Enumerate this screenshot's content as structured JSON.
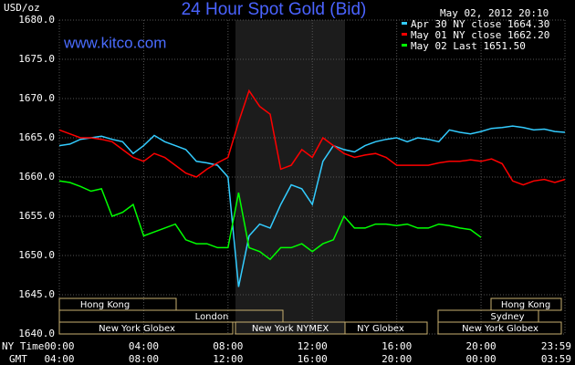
{
  "chart_data": {
    "type": "line",
    "title": "24 Hour Spot Gold (Bid)",
    "ylabel": "USD/oz",
    "timestamp": "May 02, 2012 20:10",
    "watermark": "www.kitco.com",
    "xlabel": "NY Time",
    "x2label": "GMT",
    "x": [
      0,
      0.5,
      1,
      1.5,
      2,
      2.5,
      3,
      3.5,
      4,
      4.5,
      5,
      5.5,
      6,
      6.5,
      7,
      7.5,
      8,
      8.5,
      9,
      9.5,
      10,
      10.5,
      11,
      11.5,
      12,
      12.5,
      13,
      13.5,
      14,
      14.5,
      15,
      15.5,
      16,
      16.5,
      17,
      17.5,
      18,
      18.5,
      19,
      19.5,
      20,
      20.5,
      21,
      21.5,
      22,
      22.5,
      23,
      23.5,
      23.98
    ],
    "series": [
      {
        "name": "Apr 30 NY close 1664.30",
        "color": "#33ccff",
        "values": [
          1664,
          1664.2,
          1664.8,
          1665,
          1665.2,
          1664.8,
          1664.5,
          1663,
          1664,
          1665.3,
          1664.5,
          1664,
          1663.5,
          1662,
          1661.8,
          1661.5,
          1660,
          1646,
          1652.5,
          1654,
          1653.5,
          1656.5,
          1659,
          1658.5,
          1656.5,
          1662,
          1664,
          1663.5,
          1663.2,
          1664,
          1664.5,
          1664.8,
          1665,
          1664.5,
          1665,
          1664.8,
          1664.5,
          1666,
          1665.7,
          1665.5,
          1665.8,
          1666.2,
          1666.3,
          1666.5,
          1666.3,
          1666,
          1666.1,
          1665.8,
          1665.7
        ]
      },
      {
        "name": "May 01 NY close 1662.20",
        "color": "#ff0000",
        "values": [
          1666,
          1665.5,
          1665,
          1665,
          1664.8,
          1664.5,
          1663.5,
          1662.5,
          1662,
          1663,
          1662.5,
          1661.5,
          1660.5,
          1660,
          1661,
          1661.8,
          1662.5,
          1667,
          1671,
          1669,
          1668,
          1661,
          1661.5,
          1663.5,
          1662.5,
          1665,
          1664,
          1663,
          1662.5,
          1662.8,
          1663,
          1662.5,
          1661.5,
          1661.5,
          1661.5,
          1661.5,
          1661.8,
          1662,
          1662,
          1662.2,
          1662,
          1662.3,
          1661.7,
          1659.5,
          1659,
          1659.5,
          1659.7,
          1659.3,
          1659.7
        ]
      },
      {
        "name": "May 02 Last 1651.50",
        "color": "#00ff00",
        "values": [
          1659.5,
          1659.3,
          1658.8,
          1658.2,
          1658.5,
          1655,
          1655.5,
          1656.5,
          1652.5,
          1653,
          1653.5,
          1654,
          1652,
          1651.5,
          1651.5,
          1651,
          1651,
          1658,
          1651,
          1650.5,
          1649.5,
          1651,
          1651,
          1651.5,
          1650.5,
          1651.5,
          1652,
          1655,
          1653.5,
          1653.5,
          1654,
          1654,
          1653.8,
          1654,
          1653.5,
          1653.5,
          1654,
          1653.8,
          1653.5,
          1653.3,
          1652.3,
          null,
          null,
          null,
          null,
          null,
          null,
          null,
          null
        ]
      }
    ],
    "xlim": [
      0,
      23.98
    ],
    "ylim": [
      1640,
      1680
    ],
    "xticks": [
      {
        "value": 0,
        "label": "00:00"
      },
      {
        "value": 4,
        "label": "04:00"
      },
      {
        "value": 8,
        "label": "08:00"
      },
      {
        "value": 12,
        "label": "12:00"
      },
      {
        "value": 16,
        "label": "16:00"
      },
      {
        "value": 20,
        "label": "20:00"
      },
      {
        "value": 23.98,
        "label": "23:59"
      }
    ],
    "gmt_labels": [
      "04:00",
      "08:00",
      "12:00",
      "16:00",
      "20:00",
      "00:00",
      "03:59"
    ],
    "yticks": [
      {
        "value": 1640,
        "label": "1640.0"
      },
      {
        "value": 1645,
        "label": "1645.0"
      },
      {
        "value": 1650,
        "label": "1650.0"
      },
      {
        "value": 1655,
        "label": "1655.0"
      },
      {
        "value": 1660,
        "label": "1660.0"
      },
      {
        "value": 1665,
        "label": "1665.0"
      },
      {
        "value": 1670,
        "label": "1670.0"
      },
      {
        "value": 1675,
        "label": "1675.0"
      },
      {
        "value": 1680,
        "label": "1680.0"
      }
    ],
    "grid": true,
    "sessions": [
      "Hong Kong",
      "London",
      "New York Globex",
      "New York NYMEX",
      "NY Globex",
      "Sydney",
      "Hong Kong",
      "New York Globex"
    ]
  }
}
